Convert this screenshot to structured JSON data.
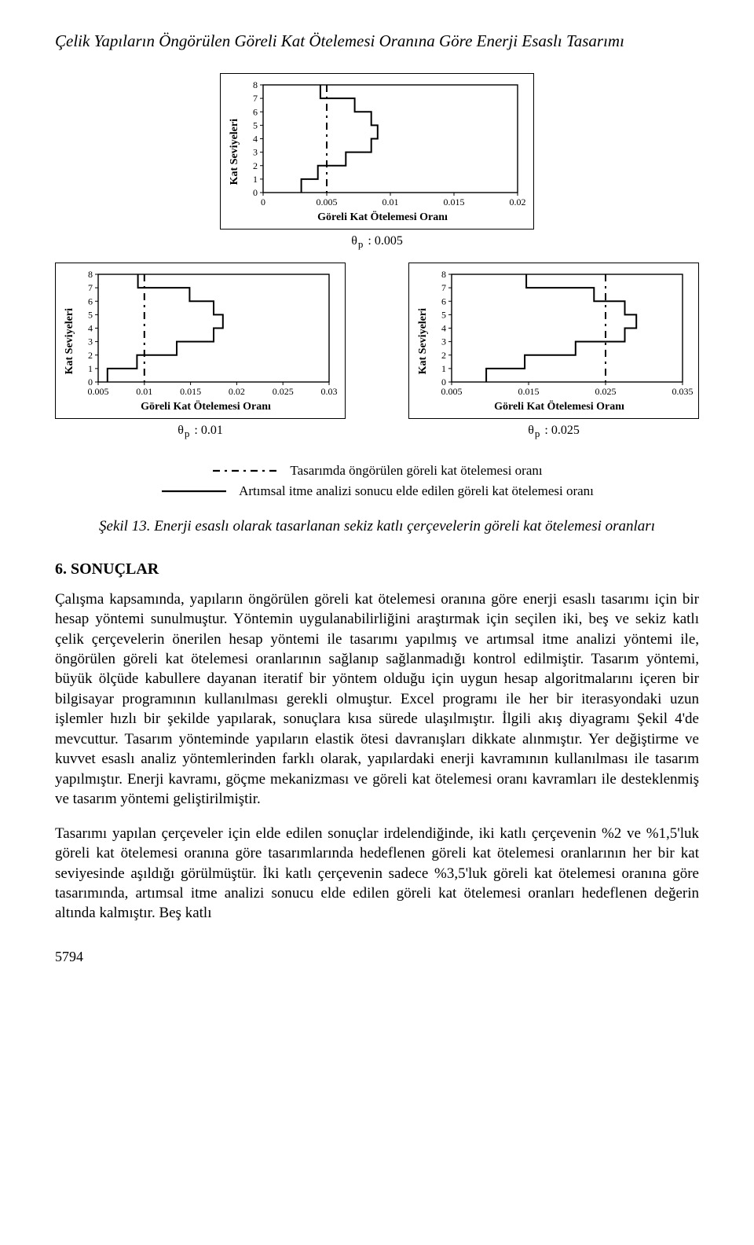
{
  "page_title": "Çelik Yapıların Öngörülen Göreli Kat Ötelemesi Oranına Göre Enerji Esaslı Tasarımı",
  "charts": {
    "top": {
      "type": "step-line",
      "ylabel": "Kat Seviyeleri",
      "xlabel": "Göreli Kat Ötelemesi Oranı",
      "caption_symbol": "θ",
      "caption_sub": "p",
      "caption_value": "0.005",
      "xlim": [
        0,
        0.02
      ],
      "xticks": [
        0,
        0.005,
        0.01,
        0.015,
        0.02
      ],
      "ylim": [
        0,
        8
      ],
      "yticks": [
        0,
        1,
        2,
        3,
        4,
        5,
        6,
        7,
        8
      ],
      "series_solid": [
        [
          0.003,
          0
        ],
        [
          0.003,
          1
        ],
        [
          0.0043,
          1
        ],
        [
          0.0043,
          2
        ],
        [
          0.0065,
          2
        ],
        [
          0.0065,
          3
        ],
        [
          0.0085,
          3
        ],
        [
          0.0085,
          4
        ],
        [
          0.009,
          4
        ],
        [
          0.009,
          5
        ],
        [
          0.0085,
          5
        ],
        [
          0.0085,
          6
        ],
        [
          0.0072,
          6
        ],
        [
          0.0072,
          7
        ],
        [
          0.0045,
          7
        ],
        [
          0.0045,
          8
        ]
      ],
      "dash_x": 0.005,
      "line_color": "#000000",
      "dash_pattern": "9 6 3 6",
      "border_color": "#000000",
      "background_color": "#ffffff"
    },
    "bottom_left": {
      "type": "step-line",
      "ylabel": "Kat Seviyeleri",
      "xlabel": "Göreli Kat Ötelemesi Oranı",
      "caption_symbol": "θ",
      "caption_sub": "p",
      "caption_value": "0.01",
      "xlim": [
        0.005,
        0.03
      ],
      "xticks": [
        0.005,
        0.01,
        0.015,
        0.02,
        0.025,
        0.03
      ],
      "ylim": [
        0,
        8
      ],
      "yticks": [
        0,
        1,
        2,
        3,
        4,
        5,
        6,
        7,
        8
      ],
      "series_solid": [
        [
          0.006,
          0
        ],
        [
          0.006,
          1
        ],
        [
          0.0092,
          1
        ],
        [
          0.0092,
          2
        ],
        [
          0.0135,
          2
        ],
        [
          0.0135,
          3
        ],
        [
          0.0175,
          3
        ],
        [
          0.0175,
          4
        ],
        [
          0.0185,
          4
        ],
        [
          0.0185,
          5
        ],
        [
          0.0175,
          5
        ],
        [
          0.0175,
          6
        ],
        [
          0.0149,
          6
        ],
        [
          0.0149,
          7
        ],
        [
          0.0093,
          7
        ],
        [
          0.0093,
          8
        ]
      ],
      "dash_x": 0.01,
      "line_color": "#000000",
      "dash_pattern": "9 6 3 6",
      "border_color": "#000000",
      "background_color": "#ffffff"
    },
    "bottom_right": {
      "type": "step-line",
      "ylabel": "Kat Seviyeleri",
      "xlabel": "Göreli Kat Ötelemesi Oranı",
      "caption_symbol": "θ",
      "caption_sub": "p",
      "caption_value": "0.025",
      "xlim": [
        0.005,
        0.035
      ],
      "xticks": [
        0.005,
        0.015,
        0.025,
        0.035
      ],
      "ylim": [
        0,
        8
      ],
      "yticks": [
        0,
        1,
        2,
        3,
        4,
        5,
        6,
        7,
        8
      ],
      "series_solid": [
        [
          0.0095,
          0
        ],
        [
          0.0095,
          1
        ],
        [
          0.0145,
          1
        ],
        [
          0.0145,
          2
        ],
        [
          0.0211,
          2
        ],
        [
          0.0211,
          3
        ],
        [
          0.0275,
          3
        ],
        [
          0.0275,
          4
        ],
        [
          0.029,
          4
        ],
        [
          0.029,
          5
        ],
        [
          0.0275,
          5
        ],
        [
          0.0275,
          6
        ],
        [
          0.0235,
          6
        ],
        [
          0.0235,
          7
        ],
        [
          0.0147,
          7
        ],
        [
          0.0147,
          8
        ]
      ],
      "dash_x": 0.025,
      "line_color": "#000000",
      "dash_pattern": "9 6 3 6",
      "border_color": "#000000",
      "background_color": "#ffffff"
    }
  },
  "legend": {
    "dashed": {
      "style": "dashed",
      "dash_pattern": "9 6 3 6",
      "label": "Tasarımda öngörülen göreli kat ötelemesi oranı"
    },
    "solid": {
      "style": "solid",
      "label": "Artımsal itme analizi sonucu elde edilen göreli kat ötelemesi oranı"
    }
  },
  "figure_caption": "Şekil 13. Enerji esaslı olarak tasarlanan sekiz katlı çerçevelerin göreli kat ötelemesi oranları",
  "section_heading": "6. SONUÇLAR",
  "paragraph1": "Çalışma kapsamında, yapıların öngörülen göreli kat ötelemesi oranına göre enerji esaslı tasarımı için bir hesap yöntemi sunulmuştur. Yöntemin uygulanabilirliğini araştırmak için seçilen iki, beş ve sekiz katlı çelik çerçevelerin önerilen hesap yöntemi ile tasarımı yapılmış ve artımsal itme analizi yöntemi ile, öngörülen göreli kat ötelemesi oranlarının sağlanıp sağlanmadığı kontrol edilmiştir. Tasarım yöntemi, büyük ölçüde kabullere dayanan iteratif bir yöntem olduğu için uygun hesap algoritmalarını içeren bir bilgisayar programının kullanılması gerekli olmuştur. Excel programı ile her bir iterasyondaki uzun işlemler hızlı bir şekilde yapılarak, sonuçlara kısa sürede ulaşılmıştır. İlgili akış diyagramı Şekil 4'de mevcuttur. Tasarım yönteminde yapıların elastik ötesi davranışları dikkate alınmıştır. Yer değiştirme ve kuvvet esaslı analiz yöntemlerinden farklı olarak, yapılardaki enerji kavramının kullanılması ile tasarım yapılmıştır. Enerji kavramı, göçme mekanizması ve göreli kat ötelemesi oranı kavramları ile desteklenmiş ve tasarım yöntemi geliştirilmiştir.",
  "paragraph2": "Tasarımı yapılan çerçeveler için elde edilen sonuçlar irdelendiğinde, iki katlı çerçevenin %2 ve %1,5'luk göreli kat ötelemesi oranına göre tasarımlarında hedeflenen göreli kat ötelemesi oranlarının her bir kat seviyesinde aşıldığı görülmüştür. İki katlı çerçevenin sadece %3,5'luk göreli kat ötelemesi oranına göre tasarımında, artımsal itme analizi sonucu elde edilen göreli kat ötelemesi oranları hedeflenen değerin altında kalmıştır. Beş katlı",
  "page_number": "5794"
}
